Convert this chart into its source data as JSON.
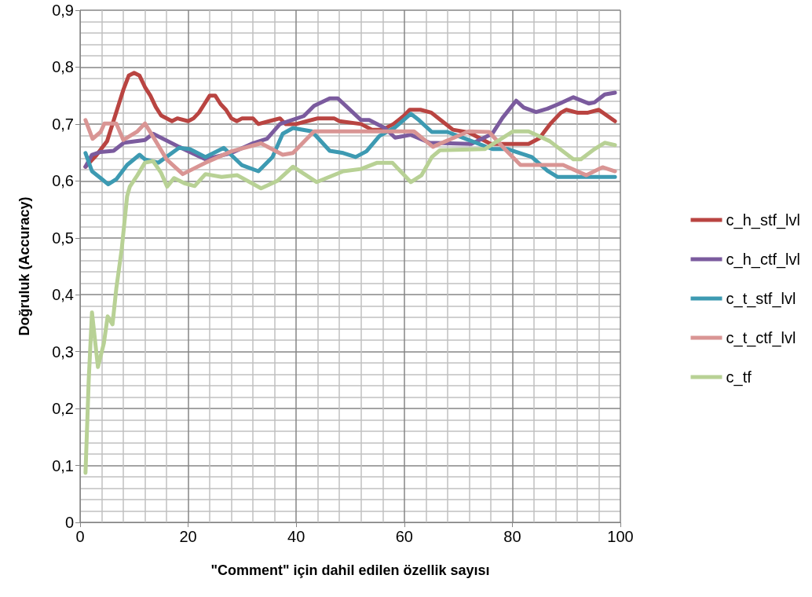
{
  "chart_data": {
    "type": "line",
    "xlabel": "\"Comment\" için dahil edilen özellik sayısı",
    "ylabel": "Doğruluk (Accuracy)",
    "xlim": [
      0,
      100
    ],
    "xticks": [
      0,
      20,
      40,
      60,
      80,
      100
    ],
    "ylim": [
      0,
      0.9
    ],
    "yticks": [
      {
        "value": 0,
        "label": "0"
      },
      {
        "value": 0.1,
        "label": "0,1"
      },
      {
        "value": 0.2,
        "label": "0,2"
      },
      {
        "value": 0.3,
        "label": "0,3"
      },
      {
        "value": 0.4,
        "label": "0,4"
      },
      {
        "value": 0.5,
        "label": "0,5"
      },
      {
        "value": 0.6,
        "label": "0,6"
      },
      {
        "value": 0.7,
        "label": "0,7"
      },
      {
        "value": 0.8,
        "label": "0,8"
      },
      {
        "value": 0.9,
        "label": "0,9"
      }
    ],
    "grid": true,
    "legend": "right",
    "marker": "none",
    "line_style": "solid",
    "series": [
      {
        "name": "c_h_stf_lvl",
        "color": "#b94441",
        "x": [
          1,
          3,
          5,
          7,
          8,
          9,
          10,
          11,
          12,
          13,
          14,
          15,
          17,
          18,
          20,
          21,
          22,
          23,
          24,
          25,
          26,
          27,
          28,
          29,
          30,
          32,
          33,
          35,
          37,
          38,
          40,
          42,
          44,
          47,
          48,
          52,
          54,
          56,
          58,
          60,
          61,
          63,
          65,
          67,
          69,
          72,
          74,
          76,
          79,
          83,
          85,
          87,
          89,
          90,
          92,
          94,
          96,
          99
        ],
        "values": [
          0.625,
          0.645,
          0.67,
          0.73,
          0.76,
          0.785,
          0.79,
          0.785,
          0.765,
          0.75,
          0.73,
          0.715,
          0.705,
          0.71,
          0.705,
          0.71,
          0.72,
          0.735,
          0.75,
          0.75,
          0.735,
          0.725,
          0.71,
          0.705,
          0.71,
          0.71,
          0.7,
          0.705,
          0.71,
          0.7,
          0.7,
          0.705,
          0.71,
          0.71,
          0.705,
          0.7,
          0.69,
          0.69,
          0.7,
          0.715,
          0.725,
          0.725,
          0.72,
          0.705,
          0.69,
          0.685,
          0.675,
          0.665,
          0.665,
          0.665,
          0.675,
          0.7,
          0.72,
          0.725,
          0.72,
          0.72,
          0.725,
          0.705
        ]
      },
      {
        "name": "c_h_ctf_lvl",
        "color": "#7b5b9e",
        "x": [
          1,
          2.2,
          3.8,
          6.2,
          8.1,
          12,
          13.5,
          18.3,
          23.2,
          28,
          31.7,
          34.6,
          37,
          41.4,
          43.3,
          46.2,
          47.7,
          52,
          53.5,
          56.4,
          58.3,
          61.2,
          64.7,
          72.4,
          76.3,
          78.2,
          80.7,
          82.1,
          84.4,
          86.5,
          88.8,
          91.3,
          94.2,
          95.2,
          97.1,
          99
        ],
        "values": [
          0.625,
          0.646,
          0.651,
          0.653,
          0.667,
          0.672,
          0.683,
          0.66,
          0.638,
          0.649,
          0.665,
          0.674,
          0.7,
          0.714,
          0.732,
          0.745,
          0.745,
          0.707,
          0.707,
          0.693,
          0.676,
          0.681,
          0.667,
          0.665,
          0.683,
          0.711,
          0.741,
          0.729,
          0.721,
          0.727,
          0.736,
          0.747,
          0.736,
          0.738,
          0.752,
          0.755
        ]
      },
      {
        "name": "c_t_stf_lvl",
        "color": "#3d9ab2",
        "x": [
          1,
          2.2,
          3.8,
          5.2,
          6.7,
          8.7,
          11,
          12,
          14.5,
          18.3,
          20.3,
          23.2,
          26.6,
          29.9,
          33,
          35.6,
          37.5,
          39.4,
          42.9,
          46.2,
          48.7,
          51,
          53,
          55.4,
          58.3,
          61.2,
          62.7,
          65.1,
          68,
          71.9,
          76.3,
          79.2,
          80.7,
          83.6,
          86.5,
          88.4,
          99
        ],
        "values": [
          0.649,
          0.617,
          0.605,
          0.594,
          0.603,
          0.628,
          0.646,
          0.638,
          0.632,
          0.658,
          0.656,
          0.642,
          0.658,
          0.628,
          0.617,
          0.642,
          0.683,
          0.693,
          0.687,
          0.653,
          0.649,
          0.642,
          0.652,
          0.679,
          0.694,
          0.718,
          0.707,
          0.686,
          0.686,
          0.672,
          0.656,
          0.656,
          0.651,
          0.642,
          0.618,
          0.607,
          0.607
        ]
      },
      {
        "name": "c_t_ctf_lvl",
        "color": "#d99594",
        "x": [
          1,
          2.3,
          3.8,
          4.5,
          6.7,
          8,
          10.6,
          12,
          14,
          16,
          19,
          23.2,
          28,
          33.5,
          37.5,
          39.4,
          43.3,
          61.8,
          65.3,
          71.9,
          75.7,
          78.6,
          81.5,
          89.4,
          93.7,
          96.7,
          99
        ],
        "values": [
          0.707,
          0.674,
          0.686,
          0.701,
          0.701,
          0.672,
          0.687,
          0.701,
          0.67,
          0.638,
          0.612,
          0.632,
          0.652,
          0.666,
          0.646,
          0.649,
          0.687,
          0.687,
          0.66,
          0.687,
          0.686,
          0.656,
          0.628,
          0.628,
          0.61,
          0.624,
          0.617
        ]
      },
      {
        "name": "c_tf",
        "color": "#b8d195",
        "x": [
          1,
          1.6,
          2.2,
          3.3,
          4.4,
          5.1,
          6,
          6.7,
          7.7,
          8.7,
          9.2,
          10.6,
          12,
          13.5,
          15,
          16.1,
          17.4,
          19.3,
          21.2,
          23.2,
          26.2,
          29.1,
          33.5,
          36.5,
          39.4,
          43.8,
          48.7,
          52,
          55,
          57.8,
          61.2,
          63.2,
          65.1,
          66.6,
          74.9,
          80.1,
          83,
          86.9,
          91.3,
          92.7,
          95.2,
          97.1,
          99
        ],
        "values": [
          0.087,
          0.251,
          0.369,
          0.273,
          0.315,
          0.362,
          0.348,
          0.411,
          0.48,
          0.573,
          0.59,
          0.61,
          0.632,
          0.635,
          0.614,
          0.59,
          0.605,
          0.596,
          0.591,
          0.612,
          0.607,
          0.61,
          0.587,
          0.6,
          0.625,
          0.598,
          0.617,
          0.621,
          0.632,
          0.632,
          0.598,
          0.61,
          0.642,
          0.654,
          0.656,
          0.687,
          0.687,
          0.67,
          0.638,
          0.638,
          0.656,
          0.667,
          0.663
        ]
      }
    ]
  }
}
